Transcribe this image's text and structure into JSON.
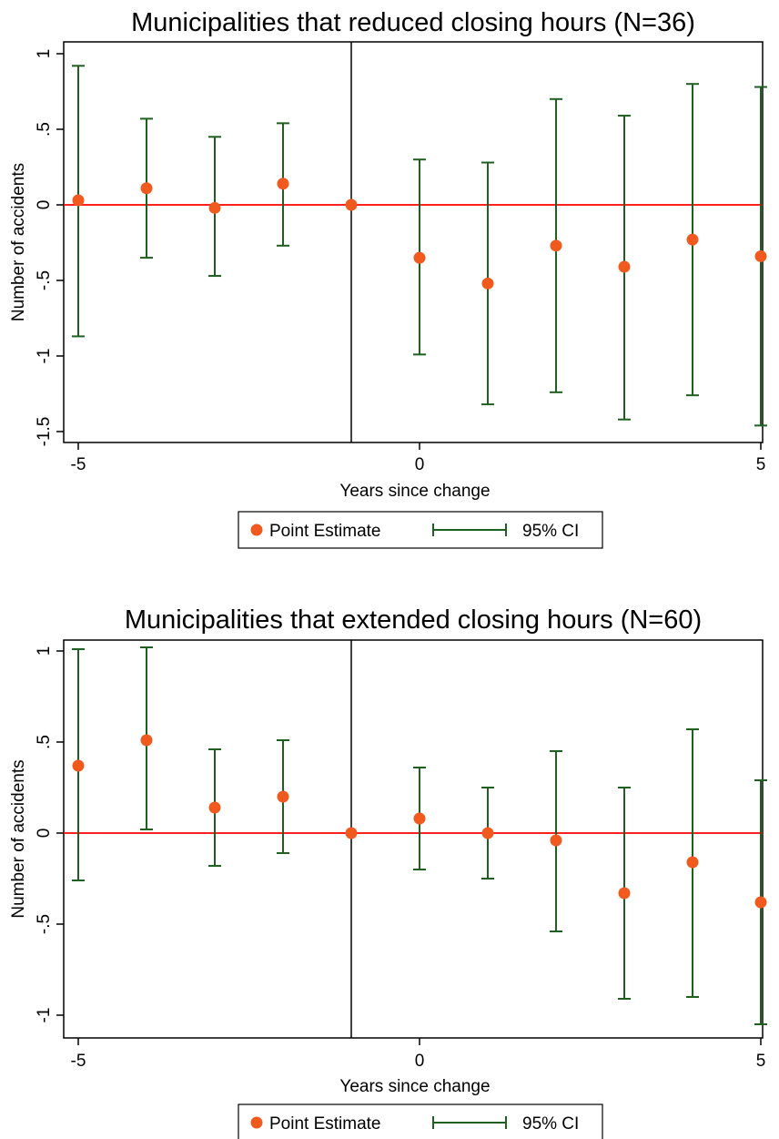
{
  "chart_data": [
    {
      "type": "scatter",
      "title": "Municipalities that reduced closing hours (N=36)",
      "xlabel": "Years since change",
      "ylabel": "Number of accidents",
      "xlim": [
        -5,
        5
      ],
      "ylim": [
        -1.5,
        1
      ],
      "xticks": [
        -5,
        0,
        5
      ],
      "xtick_labels": [
        "-5",
        "0",
        "5"
      ],
      "yticks": [
        1,
        0.5,
        0,
        -0.5,
        -1,
        -1.5
      ],
      "ytick_labels": [
        "1",
        ".5",
        "0",
        "-.5",
        "-1",
        "-1.5"
      ],
      "reference_hline": 0,
      "reference_vline": -1,
      "grid": false,
      "legend": [
        "Point Estimate",
        "95% CI"
      ],
      "legend_position": "bottom",
      "colors": {
        "point": "#f05a1e",
        "ci": "#1f5f1f",
        "hline": "#ff0000",
        "vline": "#000000"
      },
      "x": [
        -5,
        -4,
        -3,
        -2,
        -1,
        0,
        1,
        2,
        3,
        4,
        5
      ],
      "series": [
        {
          "name": "Point Estimate",
          "values": [
            0.03,
            0.11,
            -0.02,
            0.14,
            0.0,
            -0.35,
            -0.52,
            -0.27,
            -0.41,
            -0.23,
            -0.34
          ]
        },
        {
          "name": "95% CI",
          "lower": [
            -0.87,
            -0.35,
            -0.47,
            -0.27,
            0.0,
            -0.99,
            -1.32,
            -1.24,
            -1.42,
            -1.26,
            -1.46
          ],
          "upper": [
            0.92,
            0.57,
            0.45,
            0.54,
            0.0,
            0.3,
            0.28,
            0.7,
            0.59,
            0.8,
            0.78
          ]
        }
      ]
    },
    {
      "type": "scatter",
      "title": "Municipalities that extended closing hours (N=60)",
      "xlabel": "Years since change",
      "ylabel": "Number of accidents",
      "xlim": [
        -5,
        5
      ],
      "ylim": [
        -1,
        1
      ],
      "xticks": [
        -5,
        0,
        5
      ],
      "xtick_labels": [
        "-5",
        "0",
        "5"
      ],
      "yticks": [
        1,
        0.5,
        0,
        -0.5,
        -1
      ],
      "ytick_labels": [
        "1",
        ".5",
        "0",
        "-.5",
        "-1"
      ],
      "reference_hline": 0,
      "reference_vline": -1,
      "grid": false,
      "legend": [
        "Point Estimate",
        "95% CI"
      ],
      "legend_position": "bottom",
      "colors": {
        "point": "#f05a1e",
        "ci": "#1f5f1f",
        "hline": "#ff0000",
        "vline": "#000000"
      },
      "x": [
        -5,
        -4,
        -3,
        -2,
        -1,
        0,
        1,
        2,
        3,
        4,
        5
      ],
      "series": [
        {
          "name": "Point Estimate",
          "values": [
            0.37,
            0.51,
            0.14,
            0.2,
            0.0,
            0.08,
            0.0,
            -0.04,
            -0.33,
            -0.16,
            -0.38
          ]
        },
        {
          "name": "95% CI",
          "lower": [
            -0.26,
            0.02,
            -0.18,
            -0.11,
            0.0,
            -0.2,
            -0.25,
            -0.54,
            -0.91,
            -0.9,
            -1.05
          ],
          "upper": [
            1.01,
            1.02,
            0.46,
            0.51,
            0.0,
            0.36,
            0.25,
            0.45,
            0.25,
            0.57,
            0.29
          ]
        }
      ]
    }
  ]
}
